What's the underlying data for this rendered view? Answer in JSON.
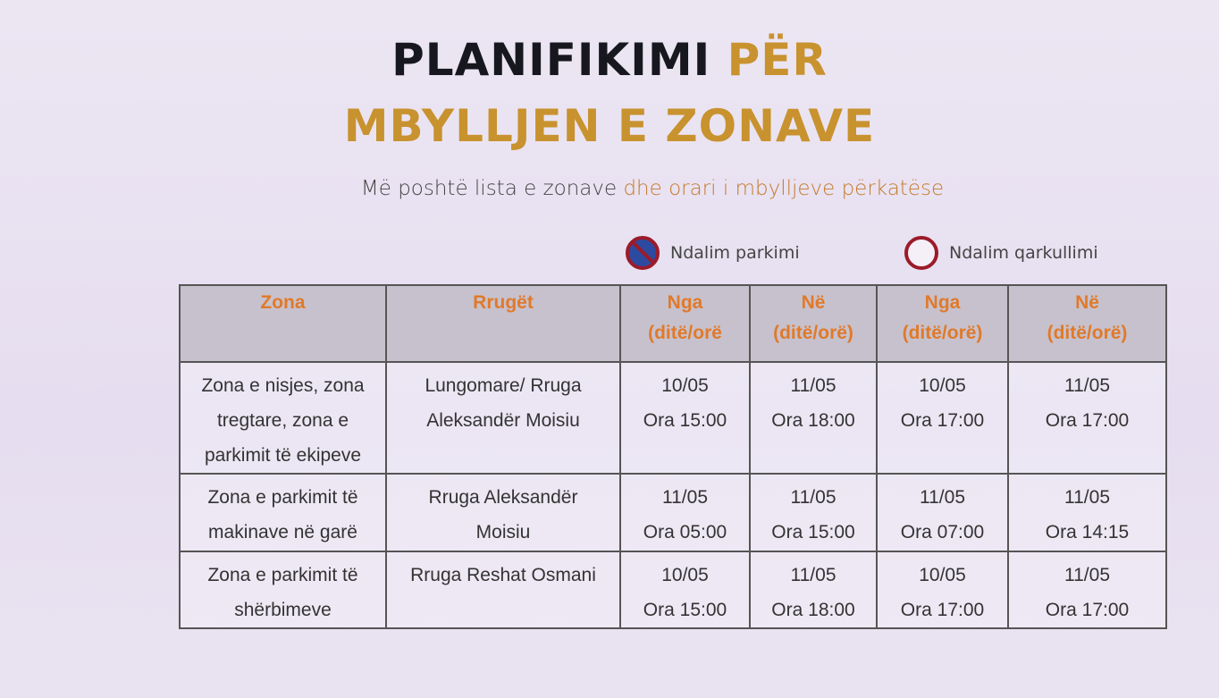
{
  "title": {
    "line1_dark": "PLANIFIKIMI ",
    "line1_gold": "PËR",
    "line2": "MBYLLJEN E ZONAVE"
  },
  "subtitle": {
    "part1": "Më poshtë lista e zonave ",
    "part2": "dhe orari i mbylljeve përkatëse"
  },
  "legend": [
    {
      "icon": "no-parking-sign-icon",
      "label": "Ndalim parkimi"
    },
    {
      "icon": "no-traffic-sign-icon",
      "label": "Ndalim qarkullimi"
    }
  ],
  "colors": {
    "gold": "#c8922f",
    "header_text": "#e07a2a",
    "header_bg": "#c7c1cd"
  },
  "table": {
    "headers": [
      {
        "l1": "Zona",
        "l2": ""
      },
      {
        "l1": "Rrugët",
        "l2": ""
      },
      {
        "l1": "Nga",
        "l2": "(ditë/orë"
      },
      {
        "l1": "Në",
        "l2": "(ditë/orë)"
      },
      {
        "l1": "Nga",
        "l2": "(ditë/orë)"
      },
      {
        "l1": "Në",
        "l2": "(ditë/orë)"
      }
    ],
    "rows": [
      {
        "zona": "Zona e nisjes, zona tregtare, zona e parkimit të ekipeve",
        "rruget": "Lungomare/ Rruga Aleksandër Moisiu",
        "c": [
          [
            "10/05",
            "Ora 15:00"
          ],
          [
            "11/05",
            "Ora 18:00"
          ],
          [
            "10/05",
            "Ora 17:00"
          ],
          [
            "11/05",
            "Ora 17:00"
          ]
        ]
      },
      {
        "zona": "Zona e parkimit të makinave në garë",
        "rruget": "Rruga Aleksandër Moisiu",
        "c": [
          [
            "11/05",
            "Ora 05:00"
          ],
          [
            "11/05",
            "Ora 15:00"
          ],
          [
            "11/05",
            "Ora 07:00"
          ],
          [
            "11/05",
            "Ora 14:15"
          ]
        ]
      },
      {
        "zona": "Zona e parkimit të shërbimeve",
        "rruget": "Rruga Reshat Osmani",
        "c": [
          [
            "10/05",
            "Ora 15:00"
          ],
          [
            "11/05",
            "Ora 18:00"
          ],
          [
            "10/05",
            "Ora 17:00"
          ],
          [
            "11/05",
            "Ora 17:00"
          ]
        ]
      }
    ]
  }
}
